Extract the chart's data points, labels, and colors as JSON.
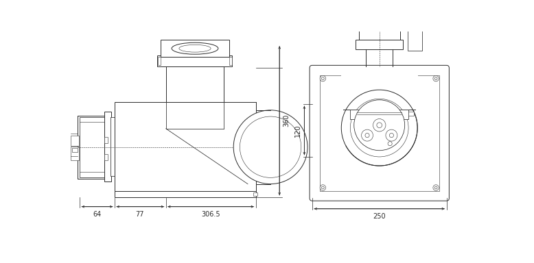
{
  "bg_color": "#ffffff",
  "lc": "#2a2a2a",
  "dc": "#2a2a2a",
  "fig_width": 7.78,
  "fig_height": 3.84,
  "dpi": 100,
  "lw": 0.7,
  "lw_thin": 0.4,
  "lw_med": 0.55
}
